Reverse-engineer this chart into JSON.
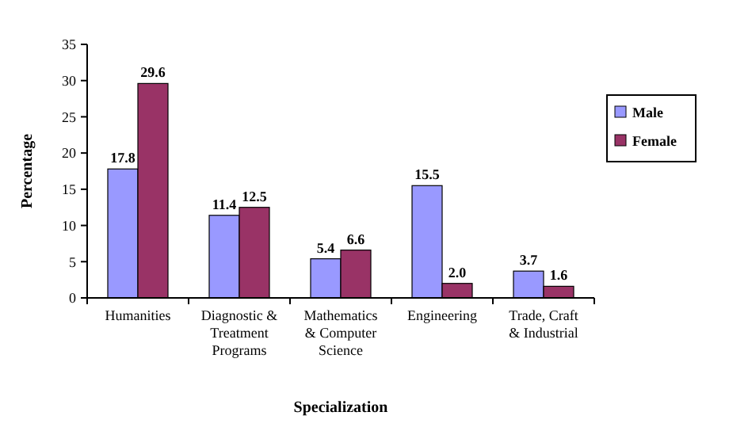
{
  "chart_data": {
    "type": "bar",
    "xlabel": "Specialization",
    "ylabel": "Percentage",
    "categories": [
      "Humanities",
      "Diagnostic & Treatment Programs",
      "Mathematics & Computer Science",
      "Engineering",
      "Trade, Craft & Industrial"
    ],
    "series": [
      {
        "name": "Male",
        "color": "#9999ff",
        "values": [
          17.8,
          11.4,
          5.4,
          15.5,
          3.7
        ]
      },
      {
        "name": "Female",
        "color": "#993366",
        "values": [
          29.6,
          12.5,
          6.6,
          2.0,
          1.6
        ]
      }
    ],
    "value_labels": [
      [
        "17.8",
        "11.4",
        "5.4",
        "15.5",
        "3.7"
      ],
      [
        "29.6",
        "12.5",
        "6.6",
        "2.0",
        "1.6"
      ]
    ],
    "ylim": [
      0,
      35
    ],
    "yticks": [
      0,
      5,
      10,
      15,
      20,
      25,
      30,
      35
    ],
    "legend": "right"
  }
}
